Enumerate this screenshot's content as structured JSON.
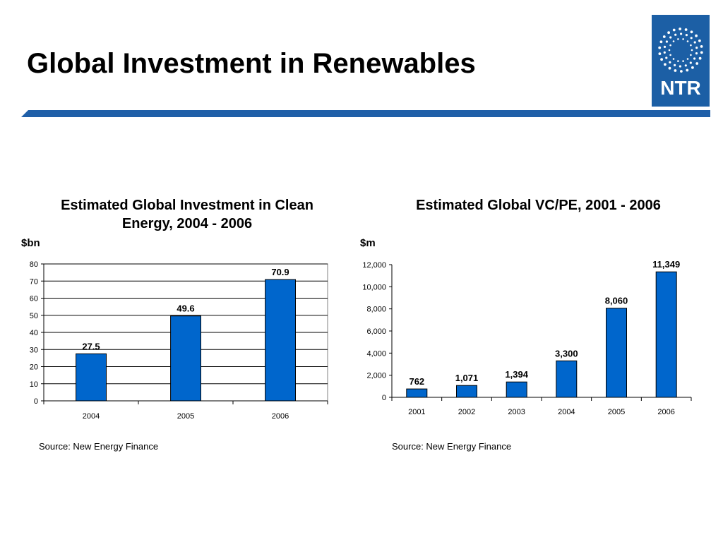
{
  "slide": {
    "title": "Global Investment in Renewables",
    "logo_text": "NTR",
    "accent_color": "#1f5fa8",
    "logo_color": "#1c5fa5"
  },
  "chart_data": [
    {
      "type": "bar",
      "title": "Estimated Global Investment in Clean Energy, 2004 - 2006",
      "unit": "$bn",
      "categories": [
        "2004",
        "2005",
        "2006"
      ],
      "values": [
        27.5,
        49.6,
        70.9
      ],
      "value_labels": [
        "27.5",
        "49.6",
        "70.9"
      ],
      "ylim": [
        0,
        80
      ],
      "yticks": [
        0,
        10,
        20,
        30,
        40,
        50,
        60,
        70,
        80
      ],
      "ytick_labels": [
        "0",
        "10",
        "20",
        "30",
        "40",
        "50",
        "60",
        "70",
        "80"
      ],
      "grid": true,
      "bar_color": "#0066cc",
      "source": "Source: New Energy Finance"
    },
    {
      "type": "bar",
      "title": "Estimated Global VC/PE, 2001 - 2006",
      "unit": "$m",
      "categories": [
        "2001",
        "2002",
        "2003",
        "2004",
        "2005",
        "2006"
      ],
      "values": [
        762,
        1071,
        1394,
        3300,
        8060,
        11349
      ],
      "value_labels": [
        "762",
        "1,071",
        "1,394",
        "3,300",
        "8,060",
        "11,349"
      ],
      "ylim": [
        0,
        12000
      ],
      "yticks": [
        0,
        2000,
        4000,
        6000,
        8000,
        10000,
        12000
      ],
      "ytick_labels": [
        "0",
        "2,000",
        "4,000",
        "6,000",
        "8,000",
        "10,000",
        "12,000"
      ],
      "grid": false,
      "bar_color": "#0066cc",
      "source": "Source: New Energy Finance"
    }
  ]
}
